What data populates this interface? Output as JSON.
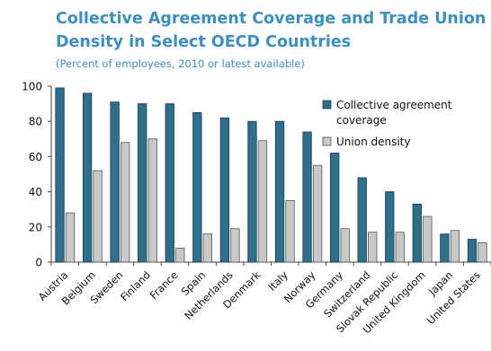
{
  "chart_data": {
    "type": "bar",
    "title_line1": "Collective Agreement Coverage and Trade Union",
    "title_line2": "Density  in Select OECD Countries",
    "subtitle": "(Percent of employees, 2010 or latest available)",
    "categories": [
      "Austria",
      "Belgium",
      "Sweden",
      "Finland",
      "France",
      "Spain",
      "Netherlands",
      "Denmark",
      "Italy",
      "Norway",
      "Germany",
      "Switzerland",
      "Slovak Republic",
      "United Kingdom",
      "Japan",
      "United States"
    ],
    "series": [
      {
        "name": "Collective agreement coverage",
        "color": "#2e6f8e",
        "values": [
          99,
          96,
          91,
          90,
          90,
          85,
          82,
          80,
          80,
          74,
          62,
          48,
          40,
          33,
          16,
          13
        ]
      },
      {
        "name": "Union density",
        "color": "#c8c8c8",
        "values": [
          28,
          52,
          68,
          70,
          8,
          16,
          19,
          69,
          35,
          55,
          19,
          17,
          17,
          26,
          18,
          11
        ]
      }
    ],
    "legend_line1": "Collective agreement",
    "legend_line2": "coverage",
    "legend_line3": "Union density",
    "yticks": [
      "0",
      "20",
      "40",
      "60",
      "80",
      "100"
    ],
    "ylim": [
      0,
      100
    ],
    "legend_position": "top-right"
  }
}
